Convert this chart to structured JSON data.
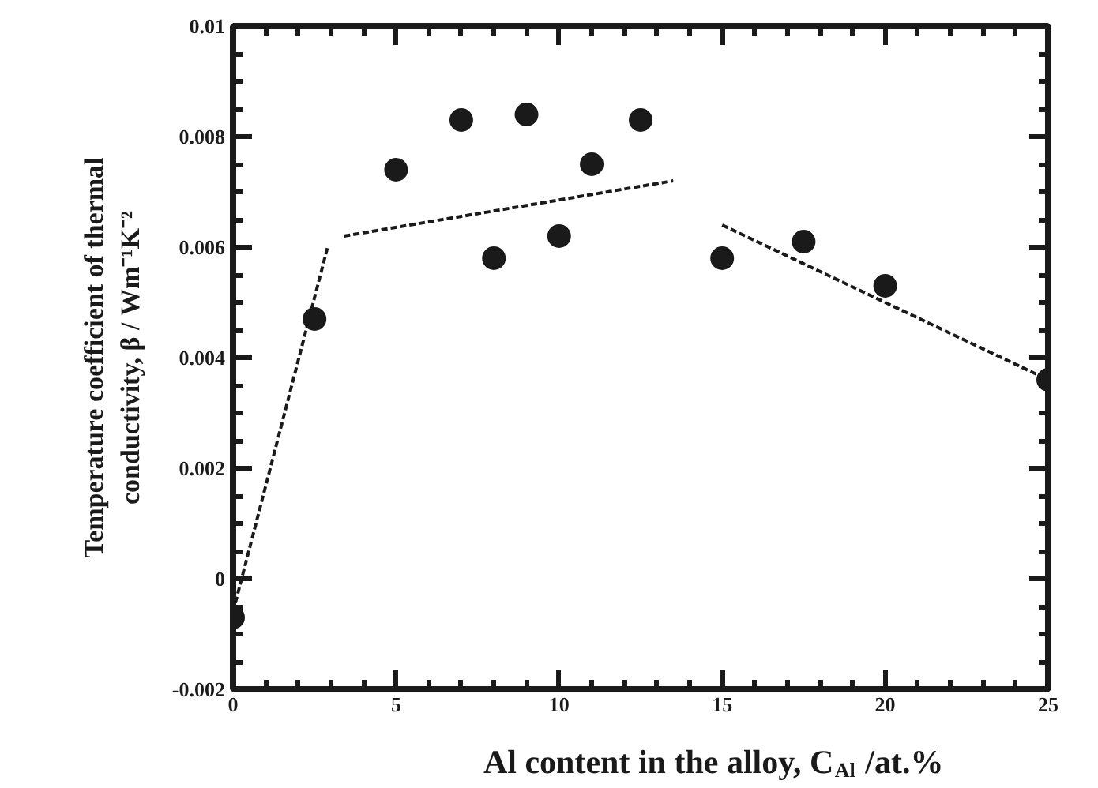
{
  "chart_data": {
    "type": "scatter",
    "xlabel": "Al content in the alloy, C$_{Al}$ /at.%",
    "ylabel": "Temperature coefficient of thermal\nconductivity, β / Wm⁻¹K⁻²",
    "xlim": [
      0,
      25
    ],
    "xticks": [
      0,
      5,
      10,
      15,
      20,
      25
    ],
    "ylim": [
      -0.002,
      0.01
    ],
    "yticks": [
      -0.002,
      0,
      0.002,
      0.004,
      0.006,
      0.008,
      0.01
    ],
    "grid": false,
    "series": [
      {
        "type": "scatter",
        "marker": "circle",
        "color": "#1a1a1a",
        "x": [
          0,
          2.5,
          5,
          7,
          8,
          9,
          10,
          11,
          12.5,
          15,
          17.5,
          20,
          25
        ],
        "values": [
          -0.0007,
          0.0047,
          0.0074,
          0.0083,
          0.0058,
          0.0084,
          0.0062,
          0.0075,
          0.0083,
          0.0058,
          0.0061,
          0.0053,
          0.0036
        ]
      },
      {
        "type": "line",
        "color": "#1a1a1a",
        "line_style": "dashed",
        "x": [
          0,
          2.9
        ],
        "values": [
          -0.0006,
          0.006
        ]
      },
      {
        "type": "line",
        "color": "#1a1a1a",
        "line_style": "dashed",
        "x": [
          3.4,
          13.5
        ],
        "values": [
          0.0062,
          0.0072
        ]
      },
      {
        "type": "line",
        "color": "#1a1a1a",
        "line_style": "dashed",
        "x": [
          15,
          25
        ],
        "values": [
          0.0064,
          0.0036
        ]
      }
    ]
  }
}
